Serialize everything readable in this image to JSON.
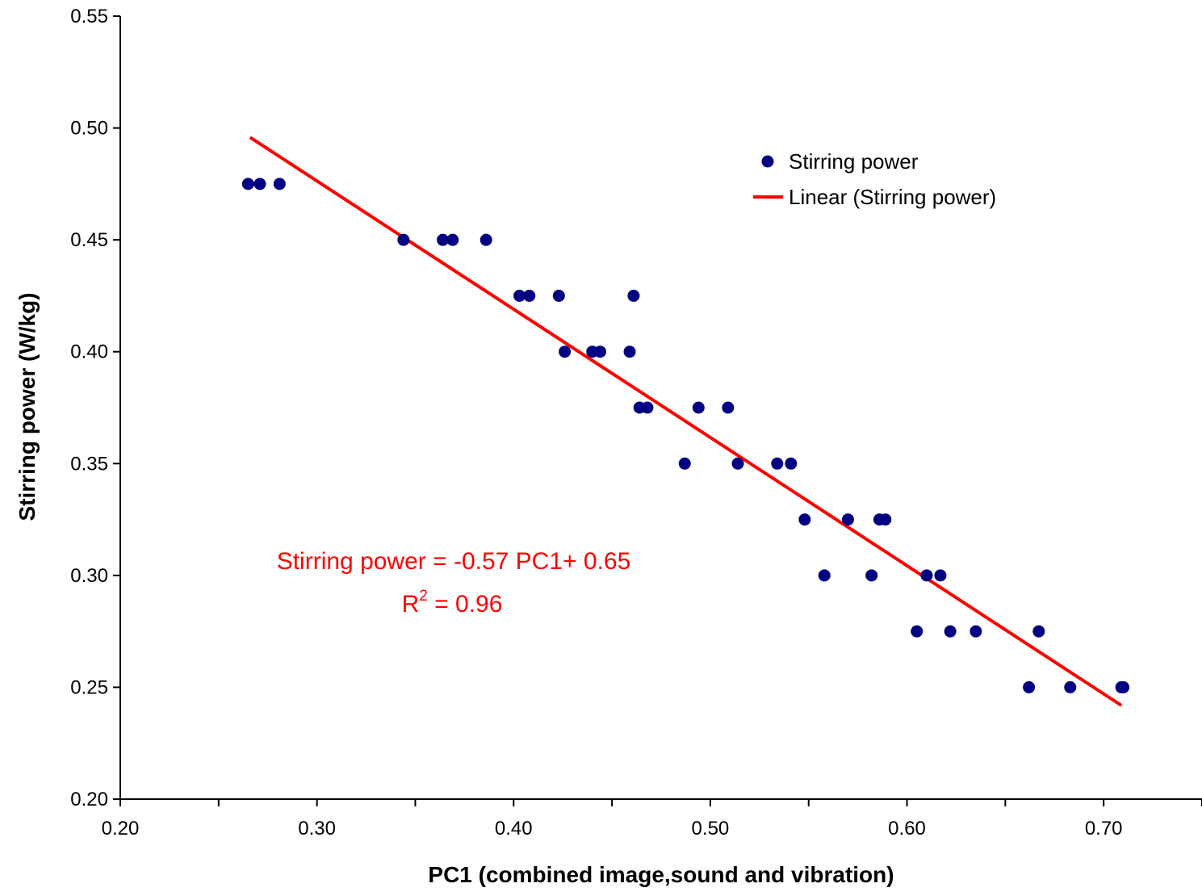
{
  "chart_data": {
    "type": "scatter",
    "title": "",
    "xlabel": "PC1 (combined image,sound and vibration)",
    "ylabel": "Stirring power (W/kg)",
    "xlim": [
      0.2,
      0.75
    ],
    "ylim": [
      0.2,
      0.55
    ],
    "xticks": [
      "0.20",
      "0.30",
      "0.40",
      "0.50",
      "0.60",
      "0.70"
    ],
    "yticks": [
      "0.20",
      "0.25",
      "0.30",
      "0.35",
      "0.40",
      "0.45",
      "0.50",
      "0.55"
    ],
    "grid": false,
    "legend_position": "top-right",
    "series": [
      {
        "name": "Stirring power",
        "kind": "scatter",
        "color": "#000080",
        "points": [
          [
            0.265,
            0.475
          ],
          [
            0.271,
            0.475
          ],
          [
            0.281,
            0.475
          ],
          [
            0.344,
            0.45
          ],
          [
            0.364,
            0.45
          ],
          [
            0.369,
            0.45
          ],
          [
            0.386,
            0.45
          ],
          [
            0.403,
            0.425
          ],
          [
            0.408,
            0.425
          ],
          [
            0.423,
            0.425
          ],
          [
            0.461,
            0.425
          ],
          [
            0.426,
            0.4
          ],
          [
            0.44,
            0.4
          ],
          [
            0.444,
            0.4
          ],
          [
            0.459,
            0.4
          ],
          [
            0.464,
            0.375
          ],
          [
            0.468,
            0.375
          ],
          [
            0.494,
            0.375
          ],
          [
            0.509,
            0.375
          ],
          [
            0.487,
            0.35
          ],
          [
            0.514,
            0.35
          ],
          [
            0.534,
            0.35
          ],
          [
            0.541,
            0.35
          ],
          [
            0.548,
            0.325
          ],
          [
            0.57,
            0.325
          ],
          [
            0.586,
            0.325
          ],
          [
            0.589,
            0.325
          ],
          [
            0.558,
            0.3
          ],
          [
            0.582,
            0.3
          ],
          [
            0.61,
            0.3
          ],
          [
            0.617,
            0.3
          ],
          [
            0.605,
            0.275
          ],
          [
            0.622,
            0.275
          ],
          [
            0.635,
            0.275
          ],
          [
            0.667,
            0.275
          ],
          [
            0.662,
            0.25
          ],
          [
            0.683,
            0.25
          ],
          [
            0.709,
            0.25
          ],
          [
            0.71,
            0.25
          ]
        ]
      },
      {
        "name": "Linear (Stirring power)",
        "kind": "trendline",
        "color": "#ff0000",
        "points": [
          [
            0.266,
            0.4958
          ],
          [
            0.709,
            0.2419
          ]
        ]
      }
    ],
    "annotations": {
      "equation": "Stirring power = -0.57 PC1+ 0.65",
      "r2_prefix": "R",
      "r2_sup": "2",
      "r2_suffix": " = 0.96"
    }
  }
}
